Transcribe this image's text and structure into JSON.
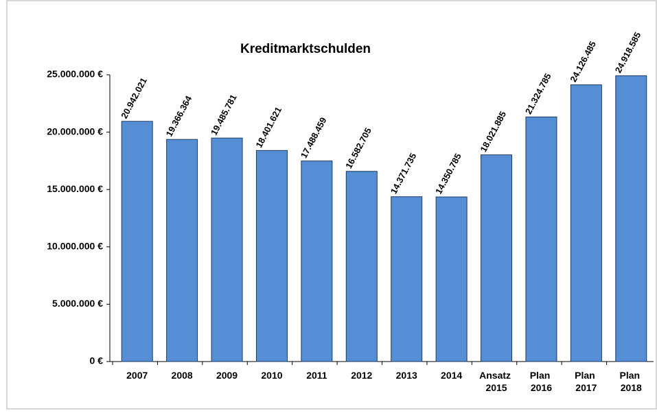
{
  "chart_data": {
    "type": "bar",
    "title": "Kreditmarktschulden",
    "categories": [
      "2007",
      "2008",
      "2009",
      "2010",
      "2011",
      "2012",
      "2013",
      "2014",
      "Ansatz 2015",
      "Plan 2016",
      "Plan 2017",
      "Plan 2018"
    ],
    "values": [
      20942021,
      19366364,
      19485781,
      18401621,
      17488459,
      16582705,
      14371735,
      14350785,
      18021885,
      21324785,
      24126485,
      24918585
    ],
    "value_labels": [
      "20.942.021",
      "19.366.364",
      "19.485.781",
      "18.401.621",
      "17.488.459",
      "16.582.705",
      "14.371.735",
      "14.350.785",
      "18.021.885",
      "21.324.785",
      "24.126.485",
      "24.918.585"
    ],
    "color": "#558ed5",
    "ylim": [
      0,
      25000000
    ],
    "yticks": [
      {
        "value": 0,
        "label": "0 €"
      },
      {
        "value": 5000000,
        "label": "5.000.000 €"
      },
      {
        "value": 10000000,
        "label": "10.000.000 €"
      },
      {
        "value": 15000000,
        "label": "15.000.000 €"
      },
      {
        "value": 20000000,
        "label": "20.000.000 €"
      },
      {
        "value": 25000000,
        "label": "25.000.000 €"
      }
    ],
    "grid": false
  }
}
